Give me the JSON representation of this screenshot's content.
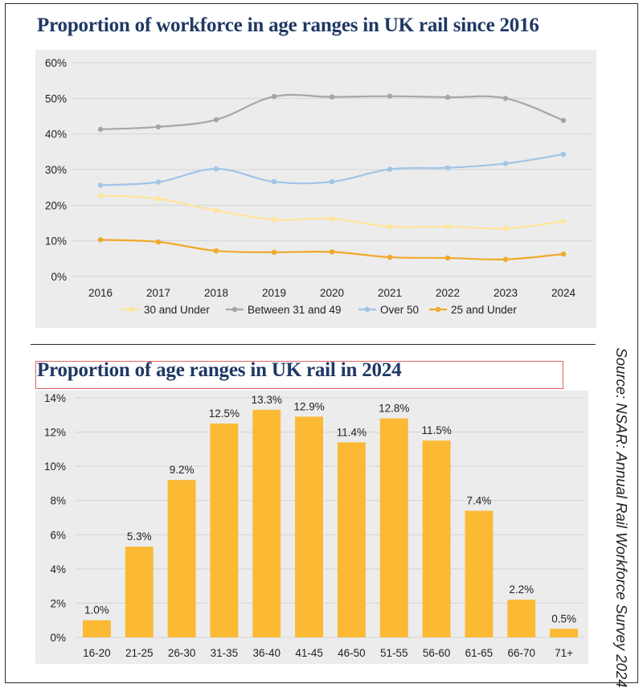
{
  "chart_data": [
    {
      "type": "line",
      "title": "Proportion of workforce in age ranges in UK rail since 2016",
      "x": [
        "2016",
        "2017",
        "2018",
        "2019",
        "2020",
        "2021",
        "2022",
        "2023",
        "2024"
      ],
      "y_ticks": [
        "0%",
        "10%",
        "20%",
        "30%",
        "40%",
        "50%",
        "60%"
      ],
      "ylim": [
        0,
        60
      ],
      "grid": true,
      "legend_position": "bottom",
      "series": [
        {
          "name": "30 and Under",
          "color": "#ffe599",
          "values": [
            22.7,
            21.8,
            18.5,
            16.0,
            16.2,
            14.0,
            14.0,
            13.5,
            15.5
          ]
        },
        {
          "name": "Between 31 and 49",
          "color": "#a6a6a6",
          "values": [
            41.3,
            42.0,
            44.0,
            50.5,
            50.4,
            50.6,
            50.3,
            50.0,
            43.8
          ]
        },
        {
          "name": "Over 50",
          "color": "#9fc5e8",
          "values": [
            25.6,
            26.5,
            30.2,
            26.6,
            26.6,
            30.1,
            30.5,
            31.7,
            34.3
          ]
        },
        {
          "name": "25 and Under",
          "color": "#f0a92a",
          "values": [
            10.3,
            9.7,
            7.2,
            6.8,
            6.9,
            5.4,
            5.2,
            4.8,
            6.3
          ]
        }
      ]
    },
    {
      "type": "bar",
      "title": "Proportion of age ranges in UK rail in 2024",
      "categories": [
        "16-20",
        "21-25",
        "26-30",
        "31-35",
        "36-40",
        "41-45",
        "46-50",
        "51-55",
        "56-60",
        "61-65",
        "66-70",
        "71+"
      ],
      "values": [
        1.0,
        5.3,
        9.2,
        12.5,
        13.3,
        12.9,
        11.4,
        12.8,
        11.5,
        7.4,
        2.2,
        0.5
      ],
      "labels": [
        "1.0%",
        "5.3%",
        "9.2%",
        "12.5%",
        "13.3%",
        "12.9%",
        "11.4%",
        "12.8%",
        "11.5%",
        "7.4%",
        "2.2%",
        "0.5%"
      ],
      "y_ticks": [
        "0%",
        "2%",
        "4%",
        "6%",
        "8%",
        "10%",
        "12%",
        "14%"
      ],
      "ylim": [
        0,
        14
      ],
      "grid": true,
      "bar_color": "#fbb934"
    }
  ],
  "source": "Source: NSAR: Annual Rail Workforce Survey 2024"
}
